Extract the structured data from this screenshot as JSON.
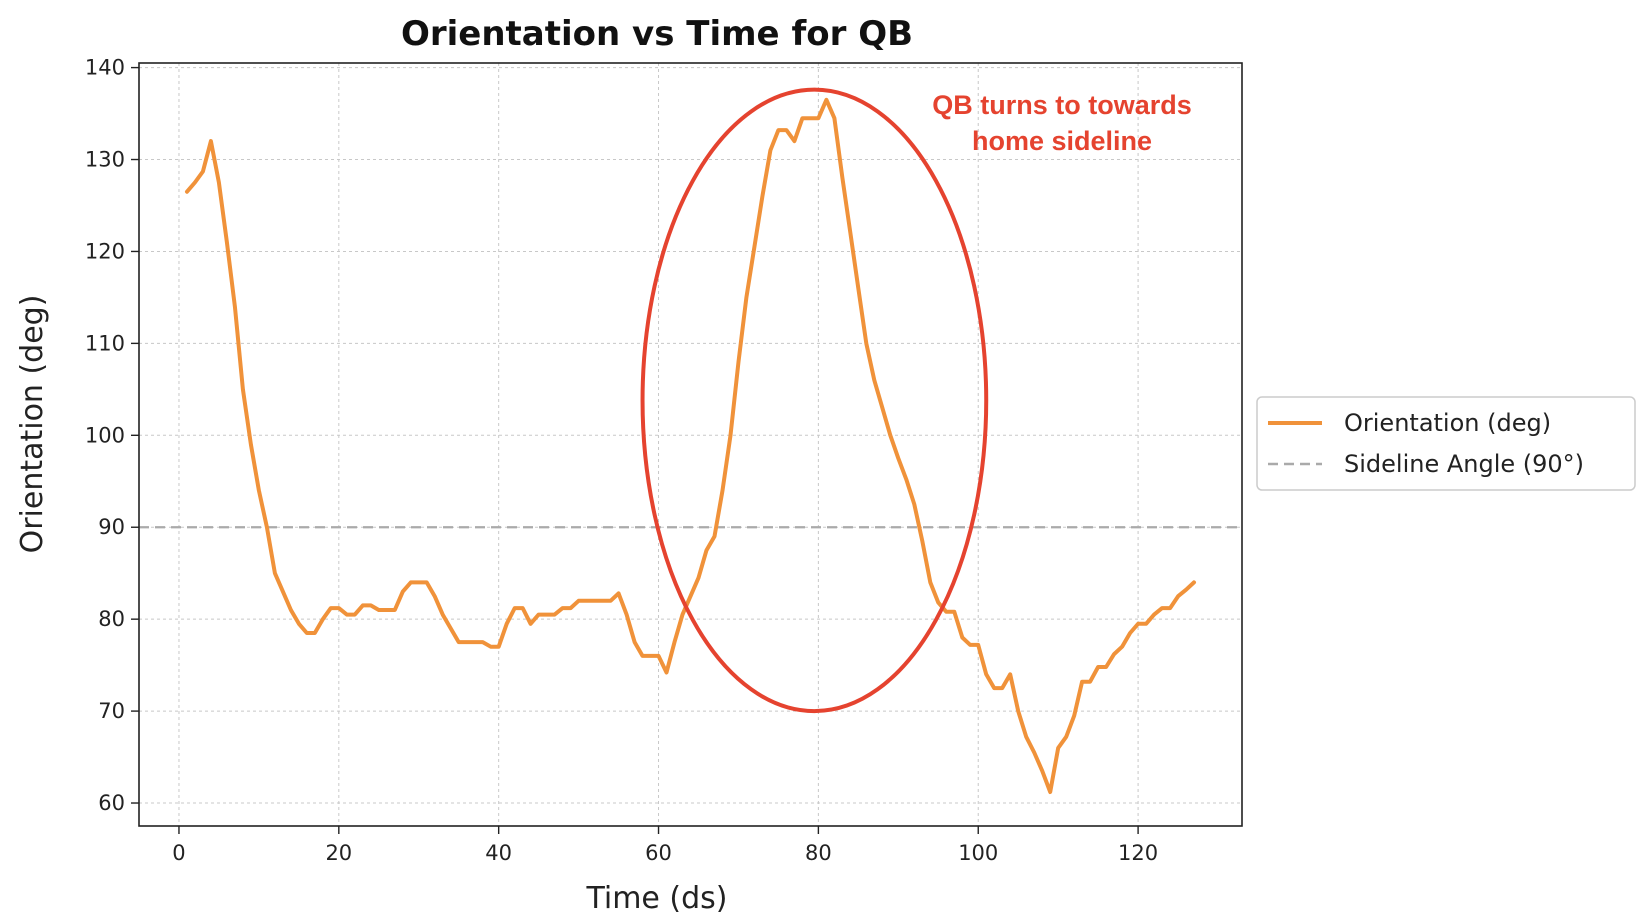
{
  "chart_data": {
    "type": "line",
    "title": "Orientation vs Time for QB",
    "xlabel": "Time (ds)",
    "ylabel": "Orientation (deg)",
    "xlim": [
      -5,
      133
    ],
    "ylim": [
      57.5,
      140.5
    ],
    "xticks": [
      0,
      20,
      40,
      60,
      80,
      100,
      120
    ],
    "yticks": [
      60,
      70,
      80,
      90,
      100,
      110,
      120,
      130,
      140
    ],
    "grid": true,
    "legend_position": "outside-right",
    "series": [
      {
        "name": "Orientation (deg)",
        "color": "#f0923a",
        "style": "solid",
        "x": [
          1,
          2,
          3,
          4,
          5,
          6,
          7,
          8,
          9,
          10,
          11,
          12,
          13,
          14,
          15,
          16,
          17,
          18,
          19,
          20,
          21,
          22,
          23,
          24,
          25,
          26,
          27,
          28,
          29,
          30,
          31,
          32,
          33,
          34,
          35,
          36,
          37,
          38,
          39,
          40,
          41,
          42,
          43,
          44,
          45,
          46,
          47,
          48,
          49,
          50,
          51,
          52,
          53,
          54,
          55,
          56,
          57,
          58,
          59,
          60,
          61,
          62,
          63,
          64,
          65,
          66,
          67,
          68,
          69,
          70,
          71,
          72,
          73,
          74,
          75,
          76,
          77,
          78,
          79,
          80,
          81,
          82,
          83,
          84,
          85,
          86,
          87,
          88,
          89,
          90,
          91,
          92,
          93,
          94,
          95,
          96,
          97,
          98,
          99,
          100,
          101,
          102,
          103,
          104,
          105,
          106,
          107,
          108,
          109,
          110,
          111,
          112,
          113,
          114,
          115,
          116,
          117,
          118,
          119,
          120,
          121,
          122,
          123,
          124,
          125,
          126,
          127
        ],
        "y": [
          126.5,
          127.5,
          128.7,
          132.0,
          127.5,
          121.0,
          114.0,
          105.0,
          99.0,
          94.0,
          90.0,
          85.0,
          83.0,
          81.0,
          79.5,
          78.5,
          78.5,
          80.0,
          81.2,
          81.2,
          80.5,
          80.5,
          81.5,
          81.5,
          81.0,
          81.0,
          81.0,
          83.0,
          84.0,
          84.0,
          84.0,
          82.5,
          80.5,
          79.0,
          77.5,
          77.5,
          77.5,
          77.5,
          77.0,
          77.0,
          79.5,
          81.2,
          81.2,
          79.5,
          80.5,
          80.5,
          80.5,
          81.2,
          81.2,
          82.0,
          82.0,
          82.0,
          82.0,
          82.0,
          82.8,
          80.5,
          77.5,
          76.0,
          76.0,
          76.0,
          74.2,
          77.5,
          80.5,
          82.5,
          84.5,
          87.5,
          89.0,
          94.0,
          100.0,
          108.0,
          115.0,
          120.5,
          126.0,
          131.0,
          133.2,
          133.2,
          132.0,
          134.5,
          134.5,
          134.5,
          136.5,
          134.5,
          128.0,
          122.0,
          116.0,
          110.0,
          106.0,
          103.0,
          100.0,
          97.5,
          95.2,
          92.5,
          88.5,
          84.0,
          81.8,
          80.8,
          80.8,
          78.0,
          77.2,
          77.2,
          74.0,
          72.5,
          72.5,
          74.0,
          70.0,
          67.2,
          65.5,
          63.5,
          61.2,
          66.0,
          67.2,
          69.5,
          73.2,
          73.2,
          74.8,
          74.8,
          76.2,
          77.0,
          78.5,
          79.5,
          79.5,
          80.5,
          81.2,
          81.2,
          82.5,
          83.2,
          84.0
        ]
      },
      {
        "name": "Sideline Angle (90°)",
        "color": "#aaaaaa",
        "style": "dashed",
        "hline": 90
      }
    ],
    "annotation": {
      "text_lines": [
        "QB turns to towards",
        "home sideline"
      ],
      "color": "#e5432f",
      "ellipse_center": [
        79.5,
        103.8
      ],
      "ellipse_radius_x": 21.5,
      "ellipse_radius_y": 33.8
    }
  }
}
